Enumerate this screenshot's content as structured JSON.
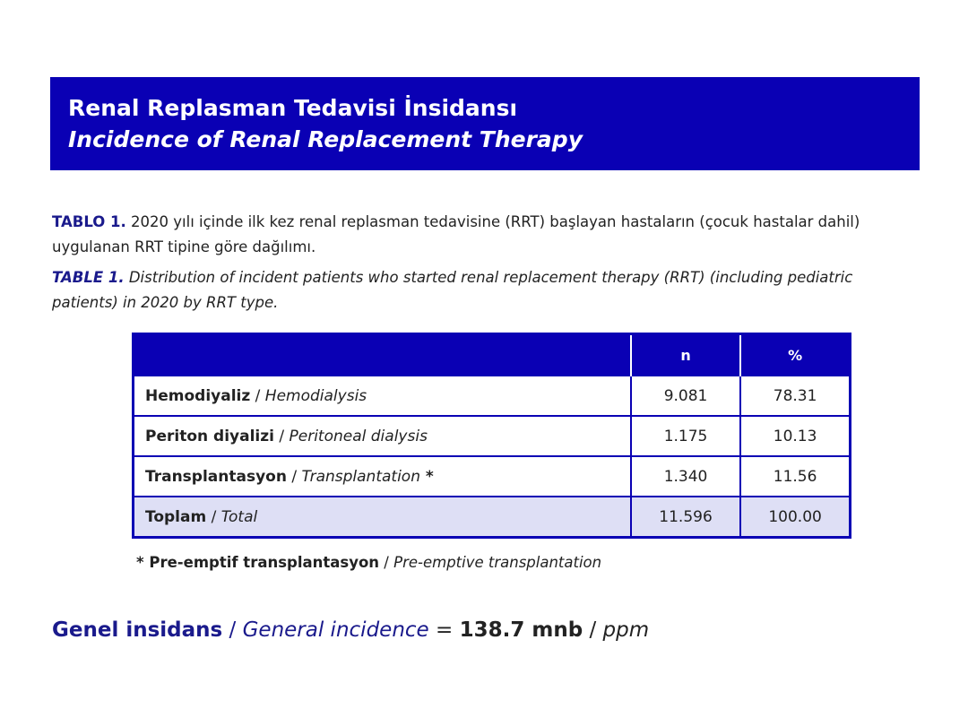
{
  "banner": {
    "title_tr": "Renal Replasman Tedavisi İnsidansı",
    "title_en": "Incidence of Renal Replacement Therapy"
  },
  "caption_tr": {
    "label": "TABLO 1.",
    "text": " 2020 yılı içinde ilk kez renal replasman tedavisine (RRT) başlayan hastaların (çocuk hastalar dahil) uygulanan RRT tipine göre dağılımı."
  },
  "caption_en": {
    "label": "TABLE 1.",
    "text": " Distribution of incident patients who started renal replacement therapy (RRT) (including pediatric patients) in 2020 by RRT type."
  },
  "table": {
    "headers": [
      "",
      "n",
      "%"
    ],
    "rows": [
      {
        "label_tr": "Hemodiyaliz",
        "sep": " / ",
        "label_en": "Hemodialysis",
        "suffix": "",
        "n": "9.081",
        "pct": "78.31"
      },
      {
        "label_tr": "Periton diyalizi",
        "sep": " / ",
        "label_en": "Peritoneal dialysis",
        "suffix": "",
        "n": "1.175",
        "pct": "10.13"
      },
      {
        "label_tr": "Transplantasyon",
        "sep": " / ",
        "label_en": "Transplantation",
        "suffix": " *",
        "n": "1.340",
        "pct": "11.56"
      },
      {
        "label_tr": "Toplam",
        "sep": " / ",
        "label_en": "Total",
        "suffix": "",
        "n": "11.596",
        "pct": "100.00"
      }
    ]
  },
  "footnote": {
    "marker_tr": "* Pre-emptif transplantasyon",
    "sep": " / ",
    "text_en": "Pre-emptive transplantation"
  },
  "general_incidence": {
    "label_tr": "Genel insidans",
    "sep": " / ",
    "label_en": "General incidence",
    "equals": " = ",
    "value": "138.7 mnb",
    "sep2": " / ",
    "unit_en": "ppm"
  },
  "colors": {
    "banner_bg": "#0a00b4",
    "label_blue": "#1a1a8c",
    "total_row_bg": "#dedff5"
  }
}
